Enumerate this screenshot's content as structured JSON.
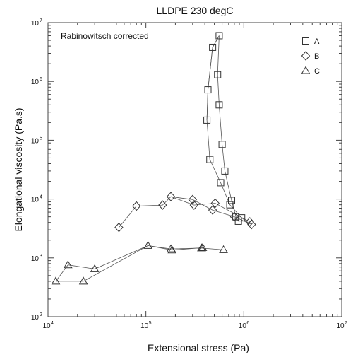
{
  "chart_data": {
    "type": "scatter",
    "title": "LLDPE 230 degC",
    "xlabel": "Extensional stress (Pa)",
    "ylabel": "Elongational viscosity (Pa.s)",
    "annotation": "Rabinowitsch corrected",
    "xscale": "log",
    "yscale": "log",
    "xlim": [
      10000,
      10000000
    ],
    "ylim": [
      100,
      10000000
    ],
    "x_ticks": [
      {
        "base": "10",
        "exp": "4"
      },
      {
        "base": "10",
        "exp": "5"
      },
      {
        "base": "10",
        "exp": "6"
      },
      {
        "base": "10",
        "exp": "7"
      }
    ],
    "y_ticks": [
      {
        "base": "10",
        "exp": "2"
      },
      {
        "base": "10",
        "exp": "3"
      },
      {
        "base": "10",
        "exp": "4"
      },
      {
        "base": "10",
        "exp": "5"
      },
      {
        "base": "10",
        "exp": "6"
      },
      {
        "base": "10",
        "exp": "7"
      }
    ],
    "legend_position": "top-right",
    "grid": false,
    "series": [
      {
        "name": "A",
        "marker": "square",
        "points": [
          [
            420000,
            220000
          ],
          [
            430000,
            720000
          ],
          [
            480000,
            3800000
          ],
          [
            560000,
            6000000
          ],
          [
            540000,
            1300000
          ],
          [
            560000,
            400000
          ],
          [
            600000,
            85000
          ],
          [
            640000,
            30000
          ],
          [
            750000,
            9500
          ],
          [
            830000,
            5000
          ],
          [
            880000,
            4200
          ],
          [
            950000,
            4800
          ],
          [
            720000,
            8000
          ],
          [
            580000,
            19000
          ],
          [
            450000,
            47000
          ]
        ],
        "segments": [
          [
            [
              420000,
              220000
            ],
            [
              430000,
              720000
            ],
            [
              480000,
              3800000
            ],
            [
              560000,
              6000000
            ],
            [
              540000,
              1300000
            ],
            [
              560000,
              400000
            ],
            [
              600000,
              85000
            ],
            [
              640000,
              30000
            ],
            [
              750000,
              9500
            ],
            [
              830000,
              5000
            ],
            [
              880000,
              4200
            ]
          ],
          [
            [
              560000,
              6000000
            ],
            [
              480000,
              3800000
            ],
            [
              430000,
              720000
            ],
            [
              420000,
              220000
            ],
            [
              450000,
              47000
            ],
            [
              580000,
              19000
            ],
            [
              720000,
              8000
            ],
            [
              950000,
              4800
            ],
            [
              1150000,
              3800
            ]
          ]
        ]
      },
      {
        "name": "B",
        "marker": "diamond",
        "points": [
          [
            53000,
            3300
          ],
          [
            80000,
            7600
          ],
          [
            148000,
            7900
          ],
          [
            180000,
            11000
          ],
          [
            300000,
            9800
          ],
          [
            310000,
            7900
          ],
          [
            480000,
            6500
          ],
          [
            510000,
            8500
          ],
          [
            800000,
            5000
          ],
          [
            1150000,
            4100
          ],
          [
            1200000,
            3700
          ]
        ],
        "segments": [
          [
            [
              53000,
              3300
            ],
            [
              80000,
              7600
            ],
            [
              148000,
              7900
            ],
            [
              180000,
              11000
            ],
            [
              300000,
              9800
            ],
            [
              480000,
              6500
            ],
            [
              800000,
              5000
            ],
            [
              1200000,
              3700
            ]
          ],
          [
            [
              180000,
              11000
            ],
            [
              310000,
              7900
            ],
            [
              510000,
              8500
            ],
            [
              1150000,
              4100
            ]
          ]
        ]
      },
      {
        "name": "C",
        "marker": "triangle",
        "points": [
          [
            12000,
            400
          ],
          [
            16000,
            760
          ],
          [
            23000,
            400
          ],
          [
            30000,
            650
          ],
          [
            105000,
            1620
          ],
          [
            180000,
            1420
          ],
          [
            185000,
            1360
          ],
          [
            370000,
            1470
          ],
          [
            380000,
            1490
          ],
          [
            620000,
            1370
          ]
        ],
        "segments": [
          [
            [
              12000,
              400
            ],
            [
              16000,
              760
            ],
            [
              30000,
              650
            ],
            [
              105000,
              1620
            ],
            [
              180000,
              1420
            ],
            [
              370000,
              1470
            ],
            [
              620000,
              1370
            ]
          ],
          [
            [
              12000,
              400
            ],
            [
              23000,
              400
            ],
            [
              105000,
              1620
            ],
            [
              185000,
              1360
            ],
            [
              380000,
              1490
            ]
          ]
        ]
      }
    ]
  }
}
